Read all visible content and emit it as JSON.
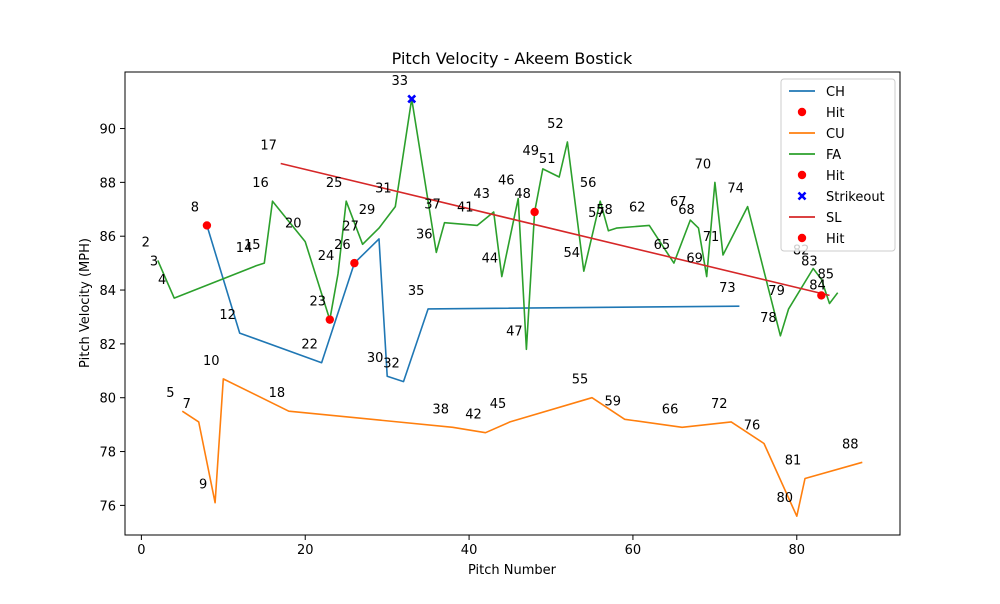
{
  "chart_data": {
    "type": "line",
    "title": "Pitch Velocity - Akeem Bostick",
    "xlabel": "Pitch Number",
    "ylabel": "Pitch Velocity (MPH)",
    "xlim": [
      -2,
      92.6
    ],
    "ylim": [
      74.9,
      92.1
    ],
    "xticks": [
      0,
      20,
      40,
      60,
      80
    ],
    "yticks": [
      76,
      78,
      80,
      82,
      84,
      86,
      88,
      90
    ],
    "legend_position": "top-right",
    "series": [
      {
        "name": "CH",
        "color": "#1f77b4",
        "points": [
          [
            8,
            86.4
          ],
          [
            12,
            82.4
          ],
          [
            22,
            81.3
          ],
          [
            26,
            85.0
          ],
          [
            29,
            85.9
          ],
          [
            30,
            80.8
          ],
          [
            32,
            80.6
          ],
          [
            35,
            83.3
          ],
          [
            73,
            83.4
          ]
        ]
      },
      {
        "name": "CU",
        "color": "#ff7f0e",
        "points": [
          [
            5,
            79.5
          ],
          [
            7,
            79.1
          ],
          [
            9,
            76.1
          ],
          [
            10,
            80.7
          ],
          [
            18,
            79.5
          ],
          [
            38,
            78.9
          ],
          [
            42,
            78.7
          ],
          [
            45,
            79.1
          ],
          [
            55,
            80.0
          ],
          [
            59,
            79.2
          ],
          [
            66,
            78.9
          ],
          [
            72,
            79.1
          ],
          [
            76,
            78.3
          ],
          [
            80,
            75.6
          ],
          [
            81,
            77.0
          ],
          [
            88,
            77.6
          ]
        ]
      },
      {
        "name": "FA",
        "color": "#2ca02c",
        "points": [
          [
            2,
            85.1
          ],
          [
            3,
            84.4
          ],
          [
            4,
            83.7
          ],
          [
            14,
            84.9
          ],
          [
            15,
            85.0
          ],
          [
            16,
            87.3
          ],
          [
            20,
            85.8
          ],
          [
            23,
            82.9
          ],
          [
            24,
            84.6
          ],
          [
            25,
            87.3
          ],
          [
            27,
            85.7
          ],
          [
            29,
            86.3
          ],
          [
            31,
            87.1
          ],
          [
            33,
            91.1
          ],
          [
            36,
            85.4
          ],
          [
            37,
            86.5
          ],
          [
            41,
            86.4
          ],
          [
            43,
            86.9
          ],
          [
            44,
            84.5
          ],
          [
            46,
            87.4
          ],
          [
            47,
            81.8
          ],
          [
            48,
            86.9
          ],
          [
            49,
            88.5
          ],
          [
            51,
            88.2
          ],
          [
            52,
            89.5
          ],
          [
            54,
            84.7
          ],
          [
            56,
            87.3
          ],
          [
            57,
            86.2
          ],
          [
            58,
            86.3
          ],
          [
            62,
            86.4
          ],
          [
            65,
            85.0
          ],
          [
            67,
            86.6
          ],
          [
            68,
            86.3
          ],
          [
            69,
            84.5
          ],
          [
            70,
            88.0
          ],
          [
            71,
            85.3
          ],
          [
            74,
            87.1
          ],
          [
            78,
            82.3
          ],
          [
            79,
            83.3
          ],
          [
            82,
            84.8
          ],
          [
            83,
            84.4
          ],
          [
            84,
            83.5
          ],
          [
            85,
            83.9
          ]
        ]
      },
      {
        "name": "SL",
        "color": "#d62728",
        "points": [
          [
            17,
            88.7
          ],
          [
            84,
            83.8
          ]
        ]
      }
    ],
    "markers": [
      {
        "name": "Hit",
        "color": "#ff0000",
        "shape": "circle",
        "points": [
          [
            8,
            86.4
          ],
          [
            23,
            82.9
          ],
          [
            26,
            85.0
          ],
          [
            48,
            86.9
          ],
          [
            83,
            83.8
          ]
        ]
      },
      {
        "name": "Strikeout",
        "color": "#0000ff",
        "shape": "x",
        "points": [
          [
            33,
            91.1
          ]
        ]
      }
    ],
    "legend": [
      {
        "label": "CH",
        "kind": "line",
        "color": "#1f77b4"
      },
      {
        "label": "Hit",
        "kind": "circle",
        "color": "#ff0000"
      },
      {
        "label": "CU",
        "kind": "line",
        "color": "#ff7f0e"
      },
      {
        "label": "FA",
        "kind": "line",
        "color": "#2ca02c"
      },
      {
        "label": "Hit",
        "kind": "circle",
        "color": "#ff0000"
      },
      {
        "label": "Strikeout",
        "kind": "x",
        "color": "#0000ff"
      },
      {
        "label": "SL",
        "kind": "line",
        "color": "#d62728"
      },
      {
        "label": "Hit",
        "kind": "circle",
        "color": "#ff0000"
      }
    ],
    "annotations": [
      {
        "text": "2",
        "x": 2,
        "y": 85.1
      },
      {
        "text": "3",
        "x": 3,
        "y": 84.4
      },
      {
        "text": "4",
        "x": 4,
        "y": 83.7
      },
      {
        "text": "5",
        "x": 5,
        "y": 79.5
      },
      {
        "text": "7",
        "x": 7,
        "y": 79.1
      },
      {
        "text": "8",
        "x": 8,
        "y": 86.4
      },
      {
        "text": "9",
        "x": 9,
        "y": 76.1
      },
      {
        "text": "10",
        "x": 10,
        "y": 80.7
      },
      {
        "text": "12",
        "x": 12,
        "y": 82.4
      },
      {
        "text": "14",
        "x": 14,
        "y": 84.9
      },
      {
        "text": "15",
        "x": 15,
        "y": 85.0
      },
      {
        "text": "16",
        "x": 16,
        "y": 87.3
      },
      {
        "text": "17",
        "x": 17,
        "y": 88.7
      },
      {
        "text": "18",
        "x": 18,
        "y": 79.5
      },
      {
        "text": "20",
        "x": 20,
        "y": 85.8
      },
      {
        "text": "22",
        "x": 22,
        "y": 81.3
      },
      {
        "text": "23",
        "x": 23,
        "y": 82.9
      },
      {
        "text": "24",
        "x": 24,
        "y": 84.6
      },
      {
        "text": "25",
        "x": 25,
        "y": 87.3
      },
      {
        "text": "26",
        "x": 26,
        "y": 85.0
      },
      {
        "text": "27",
        "x": 27,
        "y": 85.7
      },
      {
        "text": "29",
        "x": 29,
        "y": 86.3
      },
      {
        "text": "30",
        "x": 30,
        "y": 80.8
      },
      {
        "text": "31",
        "x": 31,
        "y": 87.1
      },
      {
        "text": "32",
        "x": 32,
        "y": 80.6
      },
      {
        "text": "33",
        "x": 33,
        "y": 91.1
      },
      {
        "text": "35",
        "x": 35,
        "y": 83.3
      },
      {
        "text": "36",
        "x": 36,
        "y": 85.4
      },
      {
        "text": "37",
        "x": 37,
        "y": 86.5
      },
      {
        "text": "38",
        "x": 38,
        "y": 78.9
      },
      {
        "text": "41",
        "x": 41,
        "y": 86.4
      },
      {
        "text": "42",
        "x": 42,
        "y": 78.7
      },
      {
        "text": "43",
        "x": 43,
        "y": 86.9
      },
      {
        "text": "44",
        "x": 44,
        "y": 84.5
      },
      {
        "text": "45",
        "x": 45,
        "y": 79.1
      },
      {
        "text": "46",
        "x": 46,
        "y": 87.4
      },
      {
        "text": "47",
        "x": 47,
        "y": 81.8
      },
      {
        "text": "48",
        "x": 48,
        "y": 86.9
      },
      {
        "text": "49",
        "x": 49,
        "y": 88.5
      },
      {
        "text": "51",
        "x": 51,
        "y": 88.2
      },
      {
        "text": "52",
        "x": 52,
        "y": 89.5
      },
      {
        "text": "54",
        "x": 54,
        "y": 84.7
      },
      {
        "text": "55",
        "x": 55,
        "y": 80.0
      },
      {
        "text": "56",
        "x": 56,
        "y": 87.3
      },
      {
        "text": "57",
        "x": 57,
        "y": 86.2
      },
      {
        "text": "58",
        "x": 58,
        "y": 86.3
      },
      {
        "text": "59",
        "x": 59,
        "y": 79.2
      },
      {
        "text": "62",
        "x": 62,
        "y": 86.4
      },
      {
        "text": "65",
        "x": 65,
        "y": 85.0
      },
      {
        "text": "66",
        "x": 66,
        "y": 78.9
      },
      {
        "text": "67",
        "x": 67,
        "y": 86.6
      },
      {
        "text": "68",
        "x": 68,
        "y": 86.3
      },
      {
        "text": "69",
        "x": 69,
        "y": 84.5
      },
      {
        "text": "70",
        "x": 70,
        "y": 88.0
      },
      {
        "text": "71",
        "x": 71,
        "y": 85.3
      },
      {
        "text": "72",
        "x": 72,
        "y": 79.1
      },
      {
        "text": "73",
        "x": 73,
        "y": 83.4
      },
      {
        "text": "74",
        "x": 74,
        "y": 87.1
      },
      {
        "text": "76",
        "x": 76,
        "y": 78.3
      },
      {
        "text": "78",
        "x": 78,
        "y": 82.3
      },
      {
        "text": "79",
        "x": 79,
        "y": 83.3
      },
      {
        "text": "80",
        "x": 80,
        "y": 75.6
      },
      {
        "text": "81",
        "x": 81,
        "y": 77.0
      },
      {
        "text": "82",
        "x": 82,
        "y": 84.8
      },
      {
        "text": "83",
        "x": 83,
        "y": 84.4
      },
      {
        "text": "84",
        "x": 84,
        "y": 83.5
      },
      {
        "text": "85",
        "x": 85,
        "y": 83.9
      },
      {
        "text": "88",
        "x": 88,
        "y": 77.6
      }
    ]
  }
}
